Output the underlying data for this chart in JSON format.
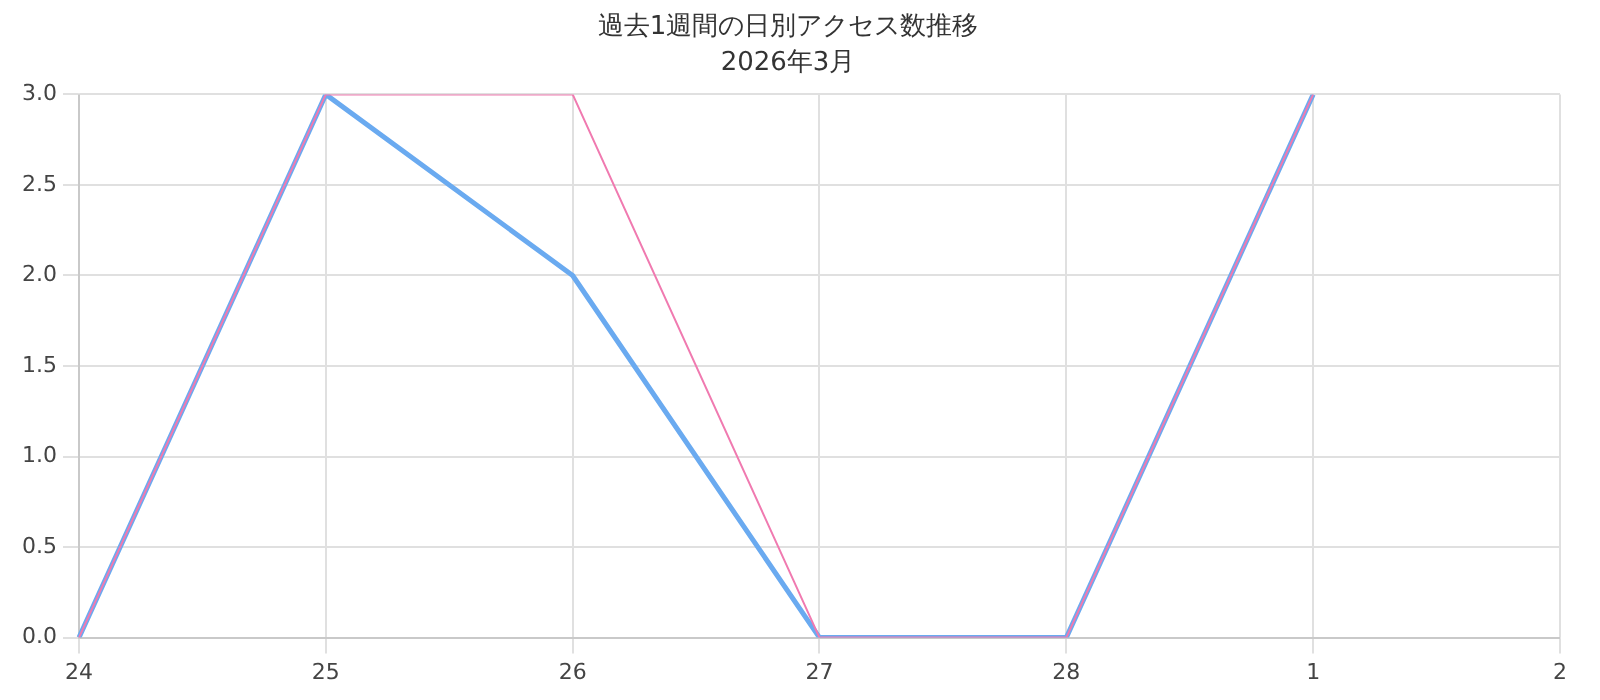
{
  "chart_data": {
    "type": "line",
    "title": "過去1週間の日別アクセス数推移",
    "subtitle": "2026年3月",
    "categories": [
      "24",
      "25",
      "26",
      "27",
      "28",
      "1",
      "2"
    ],
    "series": [
      {
        "color": "#6aaaf0",
        "values": [
          0,
          3,
          2,
          0,
          0,
          3,
          null
        ]
      },
      {
        "color": "#f07ab0",
        "values": [
          0,
          3,
          3,
          0,
          0,
          3,
          null
        ]
      }
    ],
    "ylim": [
      0,
      3
    ],
    "yticks": [
      {
        "value": 0,
        "label": "0.0"
      },
      {
        "value": 0.5,
        "label": "0.5"
      },
      {
        "value": 1,
        "label": "1.0"
      },
      {
        "value": 1.5,
        "label": "1.5"
      },
      {
        "value": 2,
        "label": "2.0"
      },
      {
        "value": 2.5,
        "label": "2.5"
      },
      {
        "value": 3,
        "label": "3.0"
      }
    ],
    "grid": true,
    "marker": "none"
  }
}
